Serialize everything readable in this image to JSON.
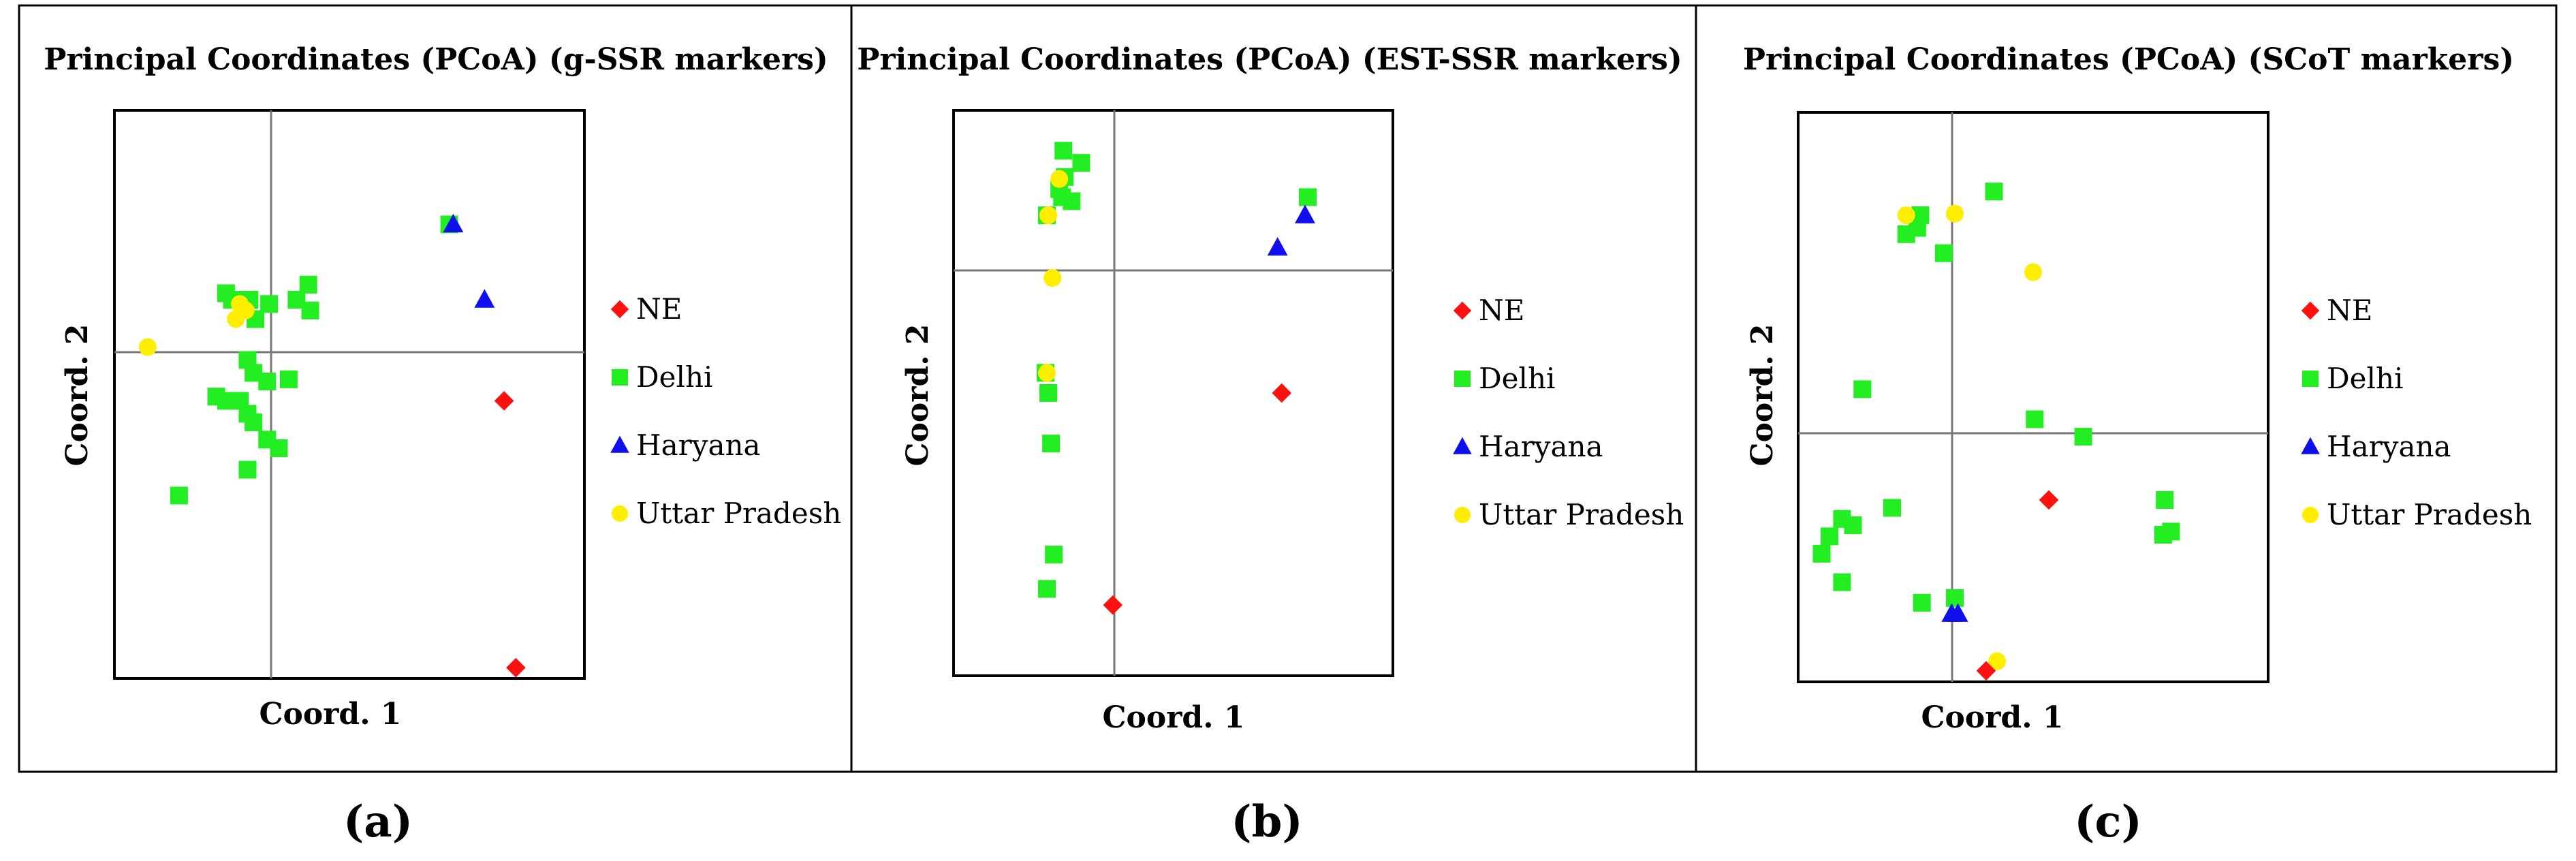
{
  "colors": {
    "NE": "#ff1010",
    "Delhi": "#22ee22",
    "Haryana": "#1010ee",
    "Uttar Pradesh": "#ffee00",
    "axis": "#777777",
    "frame": "#000000"
  },
  "legend": [
    {
      "label": "NE",
      "shape": "diamond"
    },
    {
      "label": "Delhi",
      "shape": "square"
    },
    {
      "label": "Haryana",
      "shape": "triangle"
    },
    {
      "label": "Uttar Pradesh",
      "shape": "circle"
    }
  ],
  "panels": [
    {
      "title": "Principal Coordinates (PCoA) (g-SSR markers)",
      "caption": "(a)",
      "xlabel": "Coord. 1",
      "ylabel": "Coord. 2"
    },
    {
      "title": "Principal Coordinates (PCoA) (EST-SSR markers)",
      "caption": "(b)",
      "xlabel": "Coord. 1",
      "ylabel": "Coord. 2"
    },
    {
      "title": "Principal Coordinates (PCoA) (SCoT markers)",
      "caption": "(c)",
      "xlabel": "Coord. 1",
      "ylabel": "Coord. 2"
    }
  ],
  "chart_data": [
    {
      "type": "scatter",
      "title": "Principal Coordinates (PCoA) (g-SSR markers)",
      "xlabel": "Coord. 1",
      "ylabel": "Coord. 2",
      "xlim": [
        -0.8,
        1.6
      ],
      "ylim": [
        -1.44,
        1.2
      ],
      "series": [
        {
          "name": "NE",
          "points": [
            [
              1.19,
              -0.15
            ],
            [
              1.25,
              -1.39
            ]
          ]
        },
        {
          "name": "Delhi",
          "points": [
            [
              0.91,
              0.67
            ],
            [
              0.19,
              0.39
            ],
            [
              0.13,
              0.32
            ],
            [
              -0.11,
              0.32
            ],
            [
              -0.2,
              0.32
            ],
            [
              -0.08,
              0.23
            ],
            [
              -0.01,
              0.3
            ],
            [
              0.2,
              0.27
            ],
            [
              -0.23,
              0.35
            ],
            [
              -0.12,
              0.04
            ],
            [
              -0.09,
              -0.02
            ],
            [
              -0.02,
              -0.06
            ],
            [
              0.09,
              -0.05
            ],
            [
              -0.28,
              -0.13
            ],
            [
              -0.23,
              -0.15
            ],
            [
              -0.16,
              -0.15
            ],
            [
              -0.12,
              -0.21
            ],
            [
              -0.09,
              -0.25
            ],
            [
              -0.02,
              -0.33
            ],
            [
              0.04,
              -0.37
            ],
            [
              -0.12,
              -0.47
            ],
            [
              -0.47,
              -0.59
            ]
          ]
        },
        {
          "name": "Haryana",
          "points": [
            [
              0.93,
              0.67
            ],
            [
              1.09,
              0.32
            ]
          ]
        },
        {
          "name": "Uttar Pradesh",
          "points": [
            [
              -0.16,
              0.3
            ],
            [
              -0.13,
              0.27
            ],
            [
              -0.18,
              0.23
            ],
            [
              -0.63,
              0.1
            ]
          ]
        }
      ]
    },
    {
      "type": "scatter",
      "title": "Principal Coordinates (PCoA) (EST-SSR markers)",
      "xlabel": "Coord. 1",
      "ylabel": "Coord. 2",
      "xlim": [
        -0.8,
        2.4
      ],
      "ylim": [
        -2.0,
        0.8
      ],
      "series": [
        {
          "name": "NE",
          "points": [
            [
              1.59,
              -0.6
            ],
            [
              0.36,
              -1.65
            ]
          ]
        },
        {
          "name": "Delhi",
          "points": [
            [
              0.0,
              0.6
            ],
            [
              0.13,
              0.54
            ],
            [
              -0.03,
              0.41
            ],
            [
              0.01,
              0.47
            ],
            [
              0.06,
              0.35
            ],
            [
              -0.01,
              0.37
            ],
            [
              -0.12,
              0.28
            ],
            [
              1.78,
              0.37
            ],
            [
              -0.13,
              -0.5
            ],
            [
              -0.11,
              -0.6
            ],
            [
              -0.09,
              -0.85
            ],
            [
              -0.07,
              -1.4
            ],
            [
              -0.12,
              -1.57
            ]
          ]
        },
        {
          "name": "Haryana",
          "points": [
            [
              1.76,
              0.28
            ],
            [
              1.56,
              0.12
            ]
          ]
        },
        {
          "name": "Uttar Pradesh",
          "points": [
            [
              -0.03,
              0.46
            ],
            [
              -0.11,
              0.28
            ],
            [
              -0.08,
              -0.03
            ],
            [
              -0.12,
              -0.5
            ]
          ]
        }
      ]
    },
    {
      "type": "scatter",
      "title": "Principal Coordinates (PCoA) (SCoT markers)",
      "xlabel": "Coord. 1",
      "ylabel": "Coord. 2",
      "xlim": [
        -1.0,
        2.0
      ],
      "ylim": [
        -1.45,
        2.15
      ],
      "series": [
        {
          "name": "NE",
          "points": [
            [
              0.6,
              -0.3
            ],
            [
              0.2,
              -1.38
            ]
          ]
        },
        {
          "name": "Delhi",
          "points": [
            [
              0.25,
              1.65
            ],
            [
              -0.22,
              1.5
            ],
            [
              -0.31,
              1.38
            ],
            [
              -0.24,
              1.42
            ],
            [
              -0.07,
              1.26
            ],
            [
              -0.59,
              0.4
            ],
            [
              0.51,
              0.21
            ],
            [
              0.82,
              0.1
            ],
            [
              1.34,
              -0.3
            ],
            [
              1.33,
              -0.52
            ],
            [
              1.38,
              -0.5
            ],
            [
              -0.4,
              -0.35
            ],
            [
              -0.72,
              -0.42
            ],
            [
              -0.65,
              -0.46
            ],
            [
              -0.8,
              -0.53
            ],
            [
              -0.85,
              -0.64
            ],
            [
              -0.72,
              -0.82
            ],
            [
              -0.21,
              -0.95
            ],
            [
              0.0,
              -0.92
            ]
          ]
        },
        {
          "name": "Haryana",
          "points": [
            [
              -0.02,
              -1.02
            ],
            [
              0.02,
              -1.02
            ]
          ]
        },
        {
          "name": "Uttar Pradesh",
          "points": [
            [
              -0.31,
              1.5
            ],
            [
              0.0,
              1.51
            ],
            [
              0.5,
              1.14
            ],
            [
              0.27,
              -1.32
            ]
          ]
        }
      ]
    }
  ]
}
